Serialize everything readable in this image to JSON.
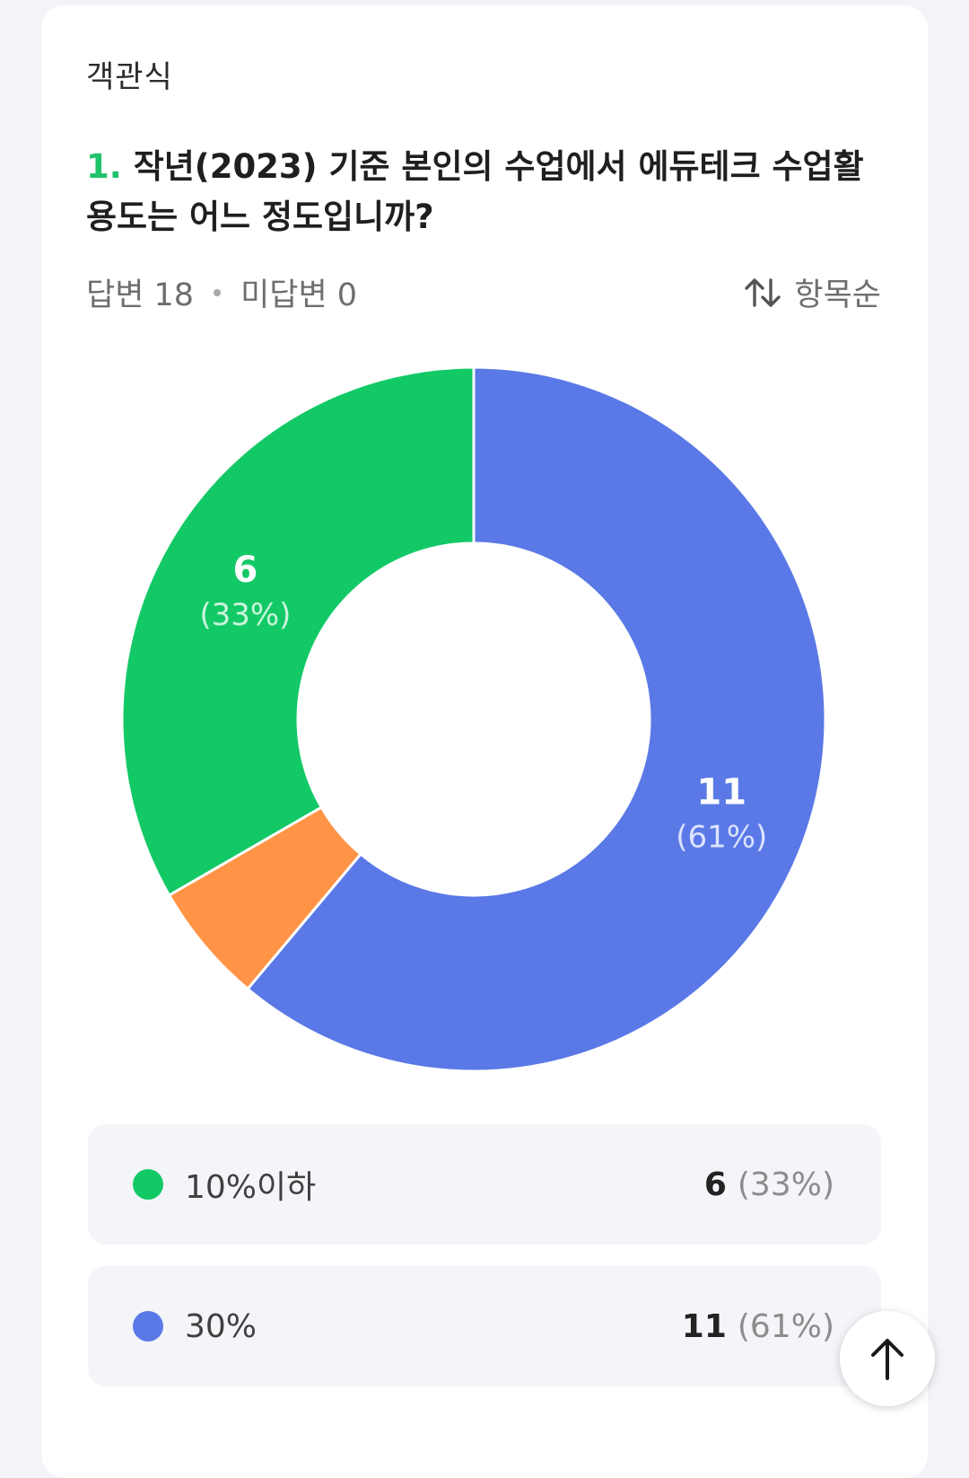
{
  "section_label": "객관식",
  "question": {
    "number": "1.",
    "text": "작년(2023) 기준 본인의 수업에서 에듀테크 수업활용도는 어느 정도입니까?"
  },
  "meta": {
    "answered": "답변 18",
    "unanswered": "미답변 0"
  },
  "sort": {
    "icon": "sort-arrows-icon",
    "label": "항목순"
  },
  "colors": {
    "green": "#13c966",
    "orange": "#ff9447",
    "blue": "#5a79e7"
  },
  "chart_data": {
    "type": "pie",
    "donut": true,
    "total": 18,
    "slices": [
      {
        "category": "30%",
        "value": 11,
        "percent": "61%",
        "color": "#5a79e7",
        "show_label": true
      },
      {
        "category": "",
        "value": 1,
        "percent": "",
        "color": "#ff9447",
        "show_label": false
      },
      {
        "category": "10%이하",
        "value": 6,
        "percent": "33%",
        "color": "#13c966",
        "show_label": true
      }
    ],
    "labels": {
      "slice_blue_count": "11",
      "slice_blue_pct": "(61%)",
      "slice_green_count": "6",
      "slice_green_pct": "(33%)"
    }
  },
  "legend": [
    {
      "label": "10%이하",
      "count": "6",
      "pct": "(33%)",
      "color": "#13c966"
    },
    {
      "label": "30%",
      "count": "11",
      "pct": "(61%)",
      "color": "#5a79e7"
    }
  ],
  "scroll_top_icon": "arrow-up-icon"
}
